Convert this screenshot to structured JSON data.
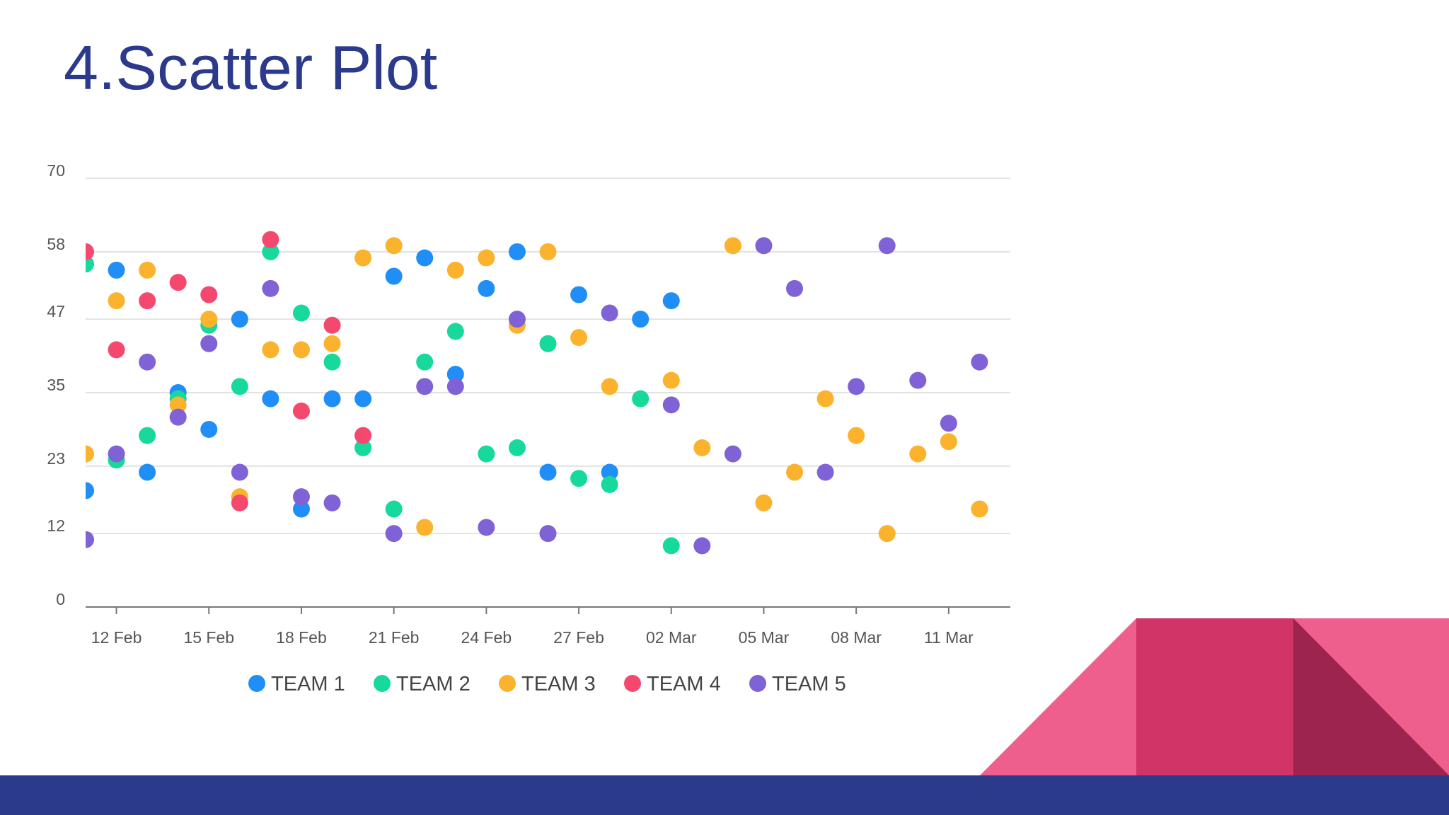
{
  "slide": {
    "title": "4.Scatter Plot"
  },
  "colors": {
    "title": "#2c3a8c",
    "footer": "#2c3a8c",
    "deco_light": "#ee5f8e",
    "deco_mid": "#d13467",
    "deco_dark": "#9c244f"
  },
  "chart_data": {
    "type": "scatter",
    "x_axis": {
      "type": "date",
      "range": [
        "2020-02-11",
        "2020-03-12"
      ],
      "tick_labels": [
        "12 Feb",
        "15 Feb",
        "18 Feb",
        "21 Feb",
        "24 Feb",
        "27 Feb",
        "02 Mar",
        "05 Mar",
        "08 Mar",
        "11 Mar"
      ]
    },
    "y_axis": {
      "range": [
        0,
        70
      ],
      "tick_labels": [
        "0",
        "12",
        "23",
        "35",
        "47",
        "58",
        "70"
      ]
    },
    "grid": true,
    "legend_position": "bottom",
    "series": [
      {
        "name": "TEAM 1",
        "color": "#1f8ff7",
        "points": [
          [
            "2020-02-11",
            19
          ],
          [
            "2020-02-12",
            55
          ],
          [
            "2020-02-13",
            22
          ],
          [
            "2020-02-14",
            35
          ],
          [
            "2020-02-15",
            29
          ],
          [
            "2020-02-16",
            47
          ],
          [
            "2020-02-17",
            34
          ],
          [
            "2020-02-18",
            16
          ],
          [
            "2020-02-19",
            34
          ],
          [
            "2020-02-20",
            34
          ],
          [
            "2020-02-21",
            54
          ],
          [
            "2020-02-22",
            57
          ],
          [
            "2020-02-23",
            38
          ],
          [
            "2020-02-24",
            52
          ],
          [
            "2020-02-25",
            58
          ],
          [
            "2020-02-26",
            22
          ],
          [
            "2020-02-27",
            51
          ],
          [
            "2020-02-28",
            22
          ],
          [
            "2020-02-29",
            47
          ],
          [
            "2020-03-01",
            50
          ]
        ]
      },
      {
        "name": "TEAM 2",
        "color": "#17d99c",
        "points": [
          [
            "2020-02-11",
            56
          ],
          [
            "2020-02-12",
            24
          ],
          [
            "2020-02-13",
            28
          ],
          [
            "2020-02-14",
            34
          ],
          [
            "2020-02-15",
            46
          ],
          [
            "2020-02-16",
            36
          ],
          [
            "2020-02-17",
            58
          ],
          [
            "2020-02-18",
            48
          ],
          [
            "2020-02-19",
            40
          ],
          [
            "2020-02-20",
            26
          ],
          [
            "2020-02-21",
            16
          ],
          [
            "2020-02-22",
            40
          ],
          [
            "2020-02-23",
            45
          ],
          [
            "2020-02-24",
            25
          ],
          [
            "2020-02-25",
            26
          ],
          [
            "2020-02-26",
            43
          ],
          [
            "2020-02-27",
            21
          ],
          [
            "2020-02-28",
            20
          ],
          [
            "2020-02-29",
            34
          ],
          [
            "2020-03-01",
            10
          ]
        ]
      },
      {
        "name": "TEAM 3",
        "color": "#fbb22d",
        "points": [
          [
            "2020-02-11",
            25
          ],
          [
            "2020-02-12",
            50
          ],
          [
            "2020-02-13",
            55
          ],
          [
            "2020-02-14",
            33
          ],
          [
            "2020-02-15",
            47
          ],
          [
            "2020-02-16",
            18
          ],
          [
            "2020-02-17",
            42
          ],
          [
            "2020-02-18",
            42
          ],
          [
            "2020-02-19",
            43
          ],
          [
            "2020-02-20",
            57
          ],
          [
            "2020-02-21",
            59
          ],
          [
            "2020-02-22",
            13
          ],
          [
            "2020-02-23",
            55
          ],
          [
            "2020-02-24",
            57
          ],
          [
            "2020-02-25",
            46
          ],
          [
            "2020-02-26",
            58
          ],
          [
            "2020-02-27",
            44
          ],
          [
            "2020-02-28",
            36
          ],
          [
            "2020-03-01",
            37
          ],
          [
            "2020-03-02",
            26
          ],
          [
            "2020-03-03",
            59
          ],
          [
            "2020-03-04",
            17
          ],
          [
            "2020-03-05",
            22
          ],
          [
            "2020-03-06",
            34
          ],
          [
            "2020-03-07",
            28
          ],
          [
            "2020-03-08",
            12
          ],
          [
            "2020-03-09",
            25
          ],
          [
            "2020-03-10",
            27
          ],
          [
            "2020-03-11",
            16
          ]
        ]
      },
      {
        "name": "TEAM 4",
        "color": "#f5486e",
        "points": [
          [
            "2020-02-11",
            58
          ],
          [
            "2020-02-12",
            42
          ],
          [
            "2020-02-13",
            50
          ],
          [
            "2020-02-14",
            53
          ],
          [
            "2020-02-15",
            51
          ],
          [
            "2020-02-16",
            17
          ],
          [
            "2020-02-17",
            60
          ],
          [
            "2020-02-18",
            32
          ],
          [
            "2020-02-19",
            46
          ],
          [
            "2020-02-20",
            28
          ]
        ]
      },
      {
        "name": "TEAM 5",
        "color": "#7f63d6",
        "points": [
          [
            "2020-02-11",
            11
          ],
          [
            "2020-02-12",
            25
          ],
          [
            "2020-02-13",
            40
          ],
          [
            "2020-02-14",
            31
          ],
          [
            "2020-02-15",
            43
          ],
          [
            "2020-02-16",
            22
          ],
          [
            "2020-02-17",
            52
          ],
          [
            "2020-02-18",
            18
          ],
          [
            "2020-02-19",
            17
          ],
          [
            "2020-02-21",
            12
          ],
          [
            "2020-02-22",
            36
          ],
          [
            "2020-02-23",
            36
          ],
          [
            "2020-02-24",
            13
          ],
          [
            "2020-02-25",
            47
          ],
          [
            "2020-02-26",
            12
          ],
          [
            "2020-02-28",
            48
          ],
          [
            "2020-03-01",
            33
          ],
          [
            "2020-03-02",
            10
          ],
          [
            "2020-03-03",
            25
          ],
          [
            "2020-03-04",
            59
          ],
          [
            "2020-03-05",
            52
          ],
          [
            "2020-03-06",
            22
          ],
          [
            "2020-03-07",
            36
          ],
          [
            "2020-03-08",
            59
          ],
          [
            "2020-03-09",
            37
          ],
          [
            "2020-03-10",
            30
          ],
          [
            "2020-03-11",
            40
          ]
        ]
      }
    ]
  }
}
